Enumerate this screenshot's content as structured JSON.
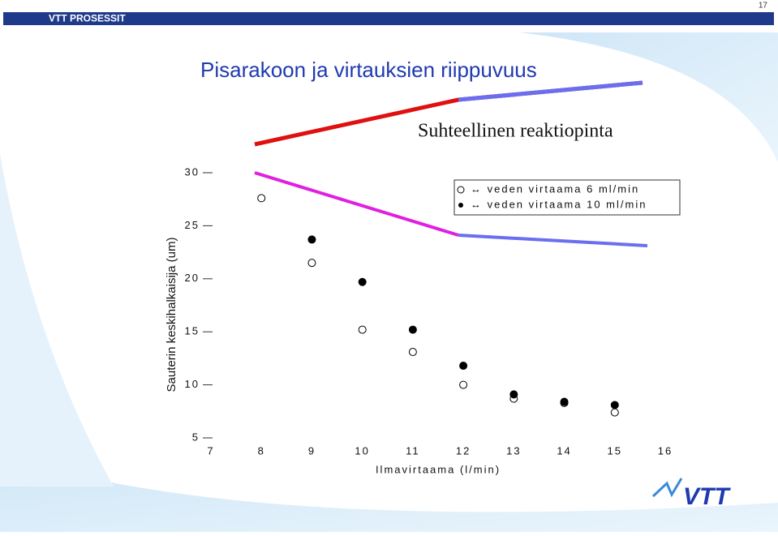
{
  "header": {
    "title": "VTT PROSESSIT",
    "page_number": "17"
  },
  "title": "Pisarakoon ja virtauksien riippuvuus",
  "subtitle": "Suhteellinen reaktiopinta",
  "logo": "VTT",
  "chart_data": {
    "type": "scatter",
    "xlabel": "Ilmavirtaama (l/min)",
    "ylabel": "Sauterin keskihalkaisija (um)",
    "xlim": [
      7,
      16
    ],
    "xticks": [
      7,
      8,
      9,
      10,
      11,
      12,
      13,
      14,
      15,
      16
    ],
    "ylim": [
      5,
      30
    ],
    "yticks": [
      5,
      10,
      15,
      20,
      25,
      30
    ],
    "legend": "top-right",
    "series": [
      {
        "name": "↔ veden virtaama 6 ml/min",
        "color": "#000000",
        "marker": "open",
        "x": [
          8,
          9,
          10,
          11,
          12,
          13,
          14,
          15
        ],
        "values": [
          27.6,
          21.5,
          15.2,
          13.1,
          10.0,
          8.7,
          8.3,
          7.4
        ]
      },
      {
        "name": "↔ veden virtaama 10 ml/min",
        "color": "#000000",
        "marker": "filled",
        "x": [
          9,
          10,
          11,
          12,
          13,
          14,
          15
        ],
        "values": [
          23.7,
          19.7,
          15.2,
          11.8,
          9.1,
          8.4,
          8.1
        ]
      }
    ]
  }
}
